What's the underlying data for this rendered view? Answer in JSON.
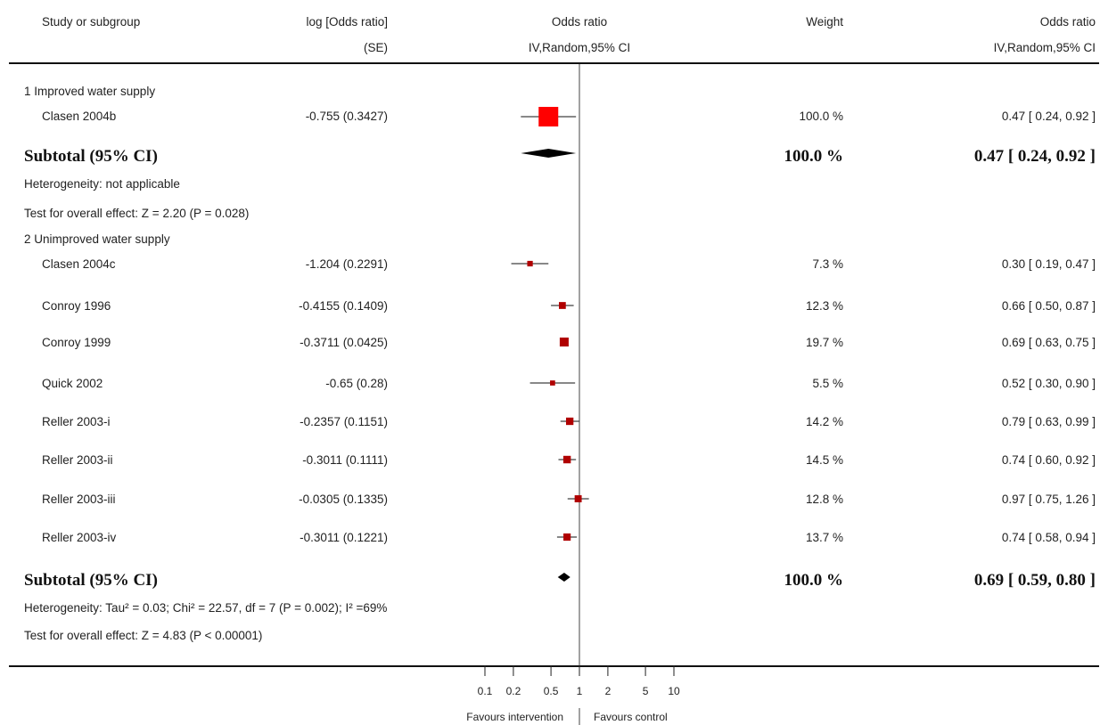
{
  "header": {
    "study": "Study or subgroup",
    "logor1": "log [Odds ratio]",
    "logor2": "(SE)",
    "or1": "Odds ratio",
    "or2": "IV,Random,95% CI",
    "weight": "Weight",
    "or_right1": "Odds ratio",
    "or_right2": "IV,Random,95% CI"
  },
  "footer": {
    "favours_left": "Favours intervention",
    "favours_right": "Favours control"
  },
  "colors": {
    "square": "#ff0000",
    "square_small": "#b00000"
  },
  "chart_data": {
    "type": "forest",
    "scale": "log",
    "xlim": [
      0.1,
      10
    ],
    "axis_ticks": [
      {
        "value": 0.1,
        "label": "0.1"
      },
      {
        "value": 0.2,
        "label": "0.2"
      },
      {
        "value": 0.5,
        "label": "0.5"
      },
      {
        "value": 1,
        "label": "1"
      },
      {
        "value": 2,
        "label": "2"
      },
      {
        "value": 5,
        "label": "5"
      },
      {
        "value": 10,
        "label": "10"
      }
    ],
    "subgroups": [
      {
        "title": "1 Improved water supply",
        "studies": [
          {
            "name": "Clasen 2004b",
            "logor": "-0.755 (0.3427)",
            "weight": "100.0 %",
            "ci_text": "0.47 [ 0.24, 0.92 ]",
            "or": 0.47,
            "lo": 0.24,
            "hi": 0.92,
            "w": 100.0
          }
        ],
        "subtotal": {
          "label": "Subtotal (95% CI)",
          "weight": "100.0 %",
          "ci_text": "0.47 [ 0.24, 0.92 ]",
          "or": 0.47,
          "lo": 0.24,
          "hi": 0.92
        },
        "heterogeneity": "Heterogeneity: not applicable",
        "overall": "Test for overall effect: Z = 2.20 (P = 0.028)"
      },
      {
        "title": "2 Unimproved water supply",
        "studies": [
          {
            "name": "Clasen 2004c",
            "logor": "-1.204 (0.2291)",
            "weight": "7.3 %",
            "ci_text": "0.30 [ 0.19, 0.47 ]",
            "or": 0.3,
            "lo": 0.19,
            "hi": 0.47,
            "w": 7.3
          },
          {
            "name": "Conroy 1996",
            "logor": "-0.4155 (0.1409)",
            "weight": "12.3 %",
            "ci_text": "0.66 [ 0.50, 0.87 ]",
            "or": 0.66,
            "lo": 0.5,
            "hi": 0.87,
            "w": 12.3
          },
          {
            "name": "Conroy 1999",
            "logor": "-0.3711 (0.0425)",
            "weight": "19.7 %",
            "ci_text": "0.69 [ 0.63, 0.75 ]",
            "or": 0.69,
            "lo": 0.63,
            "hi": 0.75,
            "w": 19.7
          },
          {
            "name": "Quick 2002",
            "logor": "-0.65 (0.28)",
            "weight": "5.5 %",
            "ci_text": "0.52 [ 0.30, 0.90 ]",
            "or": 0.52,
            "lo": 0.3,
            "hi": 0.9,
            "w": 5.5
          },
          {
            "name": "Reller 2003-i",
            "logor": "-0.2357 (0.1151)",
            "weight": "14.2 %",
            "ci_text": "0.79 [ 0.63, 0.99 ]",
            "or": 0.79,
            "lo": 0.63,
            "hi": 0.99,
            "w": 14.2
          },
          {
            "name": "Reller 2003-ii",
            "logor": "-0.3011 (0.1111)",
            "weight": "14.5 %",
            "ci_text": "0.74 [ 0.60, 0.92 ]",
            "or": 0.74,
            "lo": 0.6,
            "hi": 0.92,
            "w": 14.5
          },
          {
            "name": "Reller 2003-iii",
            "logor": "-0.0305 (0.1335)",
            "weight": "12.8 %",
            "ci_text": "0.97 [ 0.75, 1.26 ]",
            "or": 0.97,
            "lo": 0.75,
            "hi": 1.26,
            "w": 12.8
          },
          {
            "name": "Reller 2003-iv",
            "logor": "-0.3011 (0.1221)",
            "weight": "13.7 %",
            "ci_text": "0.74 [ 0.58, 0.94 ]",
            "or": 0.74,
            "lo": 0.58,
            "hi": 0.94,
            "w": 13.7
          }
        ],
        "subtotal": {
          "label": "Subtotal (95% CI)",
          "weight": "100.0 %",
          "ci_text": "0.69 [ 0.59, 0.80 ]",
          "or": 0.69,
          "lo": 0.59,
          "hi": 0.8
        },
        "heterogeneity": "Heterogeneity: Tau² = 0.03; Chi² = 22.57, df = 7 (P = 0.002); I² =69%",
        "overall": "Test for overall effect: Z = 4.83 (P < 0.00001)"
      }
    ]
  }
}
